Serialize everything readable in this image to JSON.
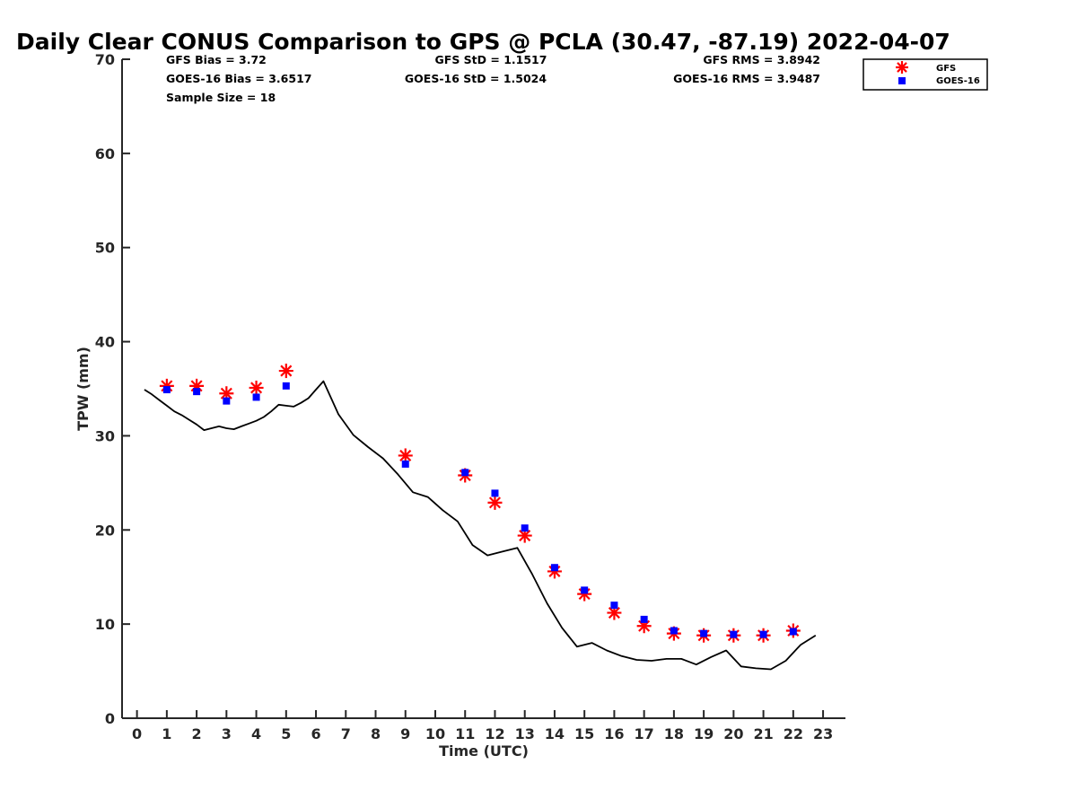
{
  "chart_data": {
    "type": "scatter",
    "title": "Daily Clear CONUS Comparison to GPS @ PCLA (30.47, -87.19) 2022-04-07",
    "xlabel": "Time (UTC)",
    "ylabel": "TPW (mm)",
    "xlim": [
      -0.5,
      23.75
    ],
    "ylim": [
      0,
      70
    ],
    "x_ticks": [
      0,
      1,
      2,
      3,
      4,
      5,
      6,
      7,
      8,
      9,
      10,
      11,
      12,
      13,
      14,
      15,
      16,
      17,
      18,
      19,
      20,
      21,
      22,
      23
    ],
    "y_ticks": [
      0,
      10,
      20,
      30,
      40,
      50,
      60,
      70
    ],
    "grid": false,
    "legend_position": "top-right",
    "stats": {
      "gfs_bias": "GFS Bias = 3.72",
      "goes_bias": "GOES-16 Bias = 3.6517",
      "sample_size": "Sample Size = 18",
      "gfs_std": "GFS StD = 1.1517",
      "goes_std": "GOES-16 StD = 1.5024",
      "gfs_rms": "GFS RMS = 3.8942",
      "goes_rms": "GOES-16 RMS = 3.9487"
    },
    "series": [
      {
        "name": "GFS",
        "marker": "asterisk",
        "color": "#ff0000",
        "x": [
          1,
          2,
          3,
          4,
          5,
          9,
          11,
          12,
          13,
          14,
          15,
          16,
          17,
          18,
          19,
          20,
          21,
          22
        ],
        "y": [
          35.3,
          35.3,
          34.5,
          35.1,
          36.9,
          27.9,
          25.8,
          22.9,
          19.4,
          15.6,
          13.2,
          11.2,
          9.8,
          9.0,
          8.8,
          8.8,
          8.8,
          9.3
        ]
      },
      {
        "name": "GOES-16",
        "marker": "square",
        "color": "#0000ff",
        "x": [
          1,
          2,
          3,
          4,
          5,
          9,
          11,
          12,
          13,
          14,
          15,
          16,
          17,
          18,
          19,
          20,
          21,
          22
        ],
        "y": [
          34.9,
          34.7,
          33.7,
          34.1,
          35.3,
          27.0,
          26.1,
          23.9,
          20.2,
          16.0,
          13.6,
          12.0,
          10.5,
          9.3,
          9.0,
          8.9,
          8.9,
          9.2
        ]
      },
      {
        "marker": "line",
        "color": "#000000",
        "x": [
          0.25,
          0.5,
          0.75,
          1,
          1.25,
          1.5,
          1.75,
          2,
          2.25,
          2.5,
          2.75,
          3,
          3.25,
          3.5,
          3.75,
          4,
          4.25,
          4.5,
          4.75,
          5,
          5.25,
          5.5,
          5.75,
          6,
          6.25,
          6.75,
          7.25,
          7.75,
          8.25,
          8.75,
          9.25,
          9.75,
          10.25,
          10.75,
          11.25,
          11.75,
          12.25,
          12.75,
          13.25,
          13.75,
          14.25,
          14.75,
          15.25,
          15.75,
          16.25,
          16.75,
          17.25,
          17.75,
          18.25,
          18.75,
          19.25,
          19.75,
          20.25,
          20.75,
          21.25,
          21.75,
          22.25,
          22.75
        ],
        "y": [
          34.9,
          34.4,
          33.8,
          33.2,
          32.6,
          32.2,
          31.7,
          31.2,
          30.6,
          30.8,
          31.0,
          30.8,
          30.7,
          31.0,
          31.3,
          31.6,
          32.0,
          32.6,
          33.3,
          33.2,
          33.1,
          33.5,
          34.0,
          34.9,
          35.8,
          32.3,
          30.1,
          28.8,
          27.6,
          25.9,
          24.0,
          23.5,
          22.1,
          20.9,
          18.4,
          17.3,
          17.7,
          18.1,
          15.3,
          12.2,
          9.6,
          7.6,
          8.0,
          7.2,
          6.6,
          6.2,
          6.1,
          6.3,
          6.3,
          5.7,
          6.5,
          7.2,
          5.5,
          5.3,
          5.2,
          6.1,
          7.8,
          8.8
        ]
      }
    ]
  }
}
